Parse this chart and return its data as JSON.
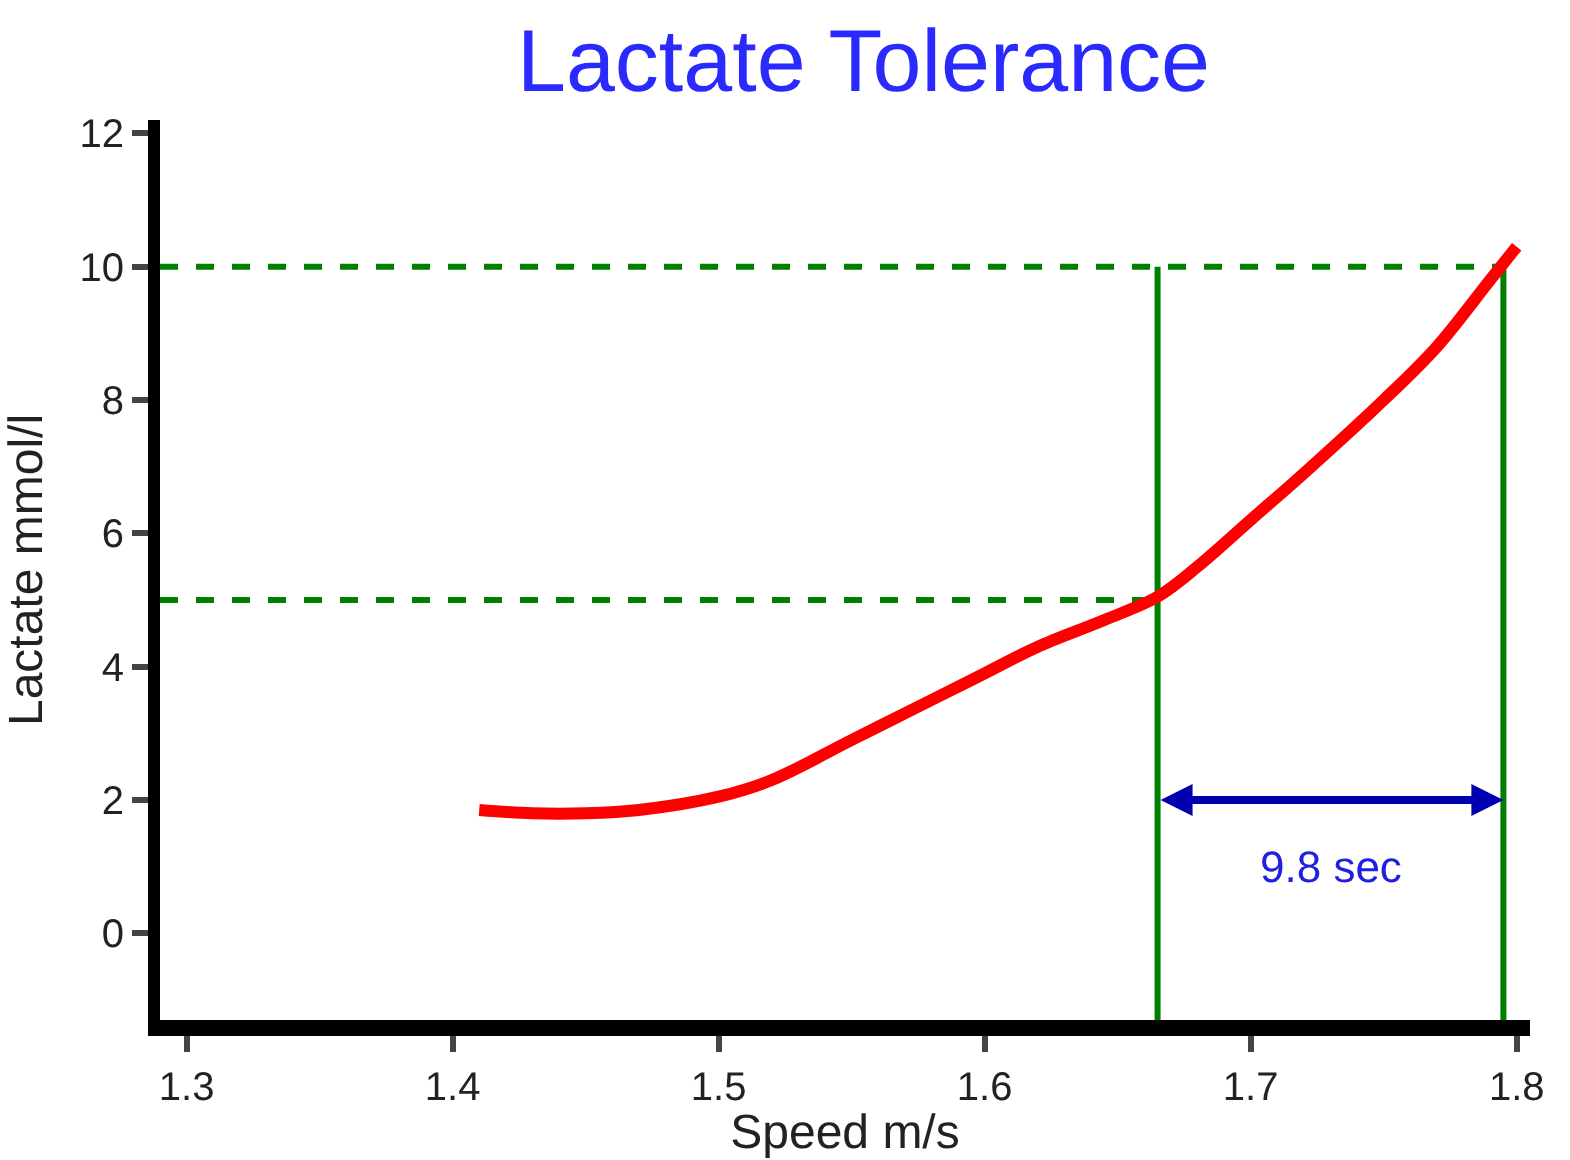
{
  "chart_data": {
    "type": "line",
    "title": "Lactate Tolerance",
    "xlabel": "Speed m/s",
    "ylabel": "Lactate mmol/l",
    "series": [
      {
        "color": "#ff0000",
        "x": [
          1.41,
          1.43,
          1.45,
          1.47,
          1.5,
          1.52,
          1.55,
          1.58,
          1.6,
          1.62,
          1.645,
          1.665,
          1.68,
          1.7,
          1.72,
          1.75,
          1.77,
          1.79,
          1.8
        ],
        "values": [
          1.85,
          1.8,
          1.8,
          1.85,
          2.05,
          2.3,
          2.9,
          3.5,
          3.9,
          4.3,
          4.7,
          5.05,
          5.5,
          6.2,
          6.9,
          8.0,
          8.8,
          9.8,
          10.3
        ]
      }
    ],
    "xlim": [
      1.29,
      1.805
    ],
    "ylim": [
      -1.3,
      12.2
    ],
    "xticks": [
      1.3,
      1.4,
      1.5,
      1.6,
      1.7,
      1.8
    ],
    "yticks": [
      0,
      2,
      4,
      6,
      8,
      10,
      12
    ],
    "grid": false,
    "marker": "none",
    "line_style": "solid",
    "ref_lines": [
      {
        "axis": "y",
        "value": 5,
        "color": "#008000",
        "line_style": "dashed"
      },
      {
        "axis": "y",
        "value": 10,
        "color": "#008000",
        "line_style": "dashed"
      },
      {
        "axis": "x",
        "value": 1.665,
        "color": "#008000",
        "line_style": "solid"
      },
      {
        "axis": "x",
        "value": 1.795,
        "color": "#008000",
        "line_style": "solid"
      }
    ],
    "annotations": [
      "9.8 sec"
    ]
  }
}
